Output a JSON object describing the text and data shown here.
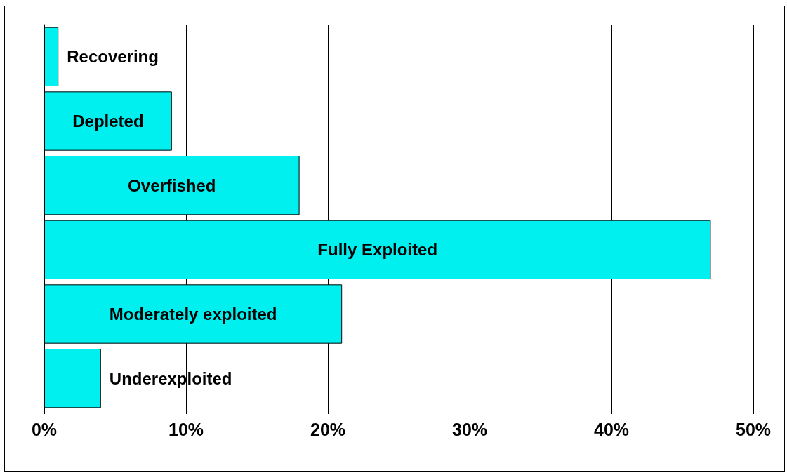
{
  "chart_data": {
    "type": "bar",
    "orientation": "horizontal",
    "categories": [
      "Recovering",
      "Depleted",
      "Overfished",
      "Fully Exploited",
      "Moderately exploited",
      "Underexploited"
    ],
    "values": [
      1,
      9,
      18,
      47,
      21,
      4
    ],
    "color": "#00f0f0",
    "xlim": [
      0,
      50
    ],
    "xticks": [
      {
        "value": 0,
        "label": "0%"
      },
      {
        "value": 10,
        "label": "10%"
      },
      {
        "value": 20,
        "label": "20%"
      },
      {
        "value": 30,
        "label": "30%"
      },
      {
        "value": 40,
        "label": "40%"
      },
      {
        "value": 50,
        "label": "50%"
      }
    ],
    "grid": "x",
    "tick_labels": "x"
  }
}
